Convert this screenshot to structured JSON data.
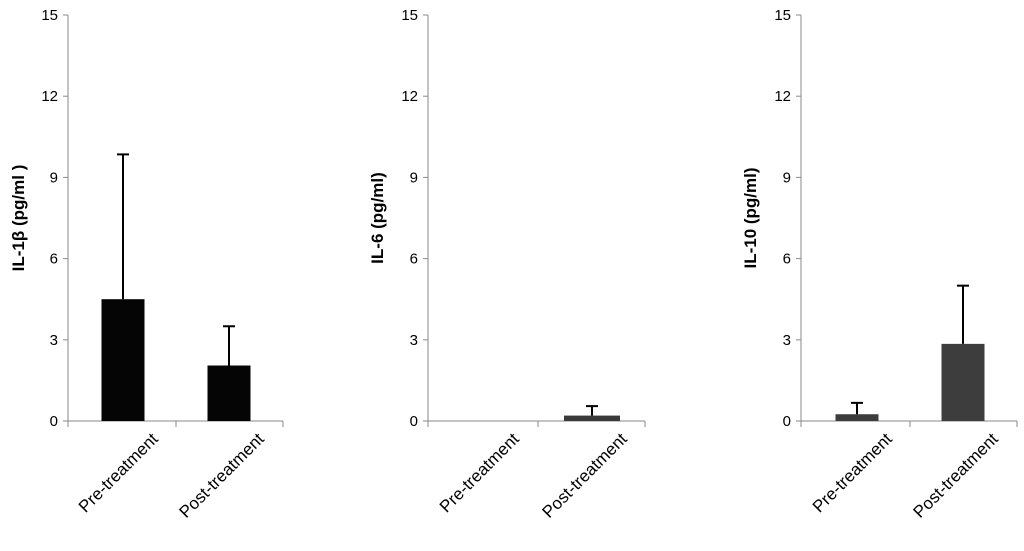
{
  "chart_data": [
    {
      "type": "bar",
      "categories": [
        "Pre-treatment",
        "Post-treatment"
      ],
      "values": [
        4.5,
        2.05
      ],
      "error_bars": [
        5.35,
        1.45
      ],
      "ylabel": "IL-1β (pg/ml )",
      "ylim": [
        0,
        15
      ],
      "yticks": [
        "0",
        "3",
        "6",
        "9",
        "12",
        "15"
      ],
      "bar_color": "#050505",
      "grid": false
    },
    {
      "type": "bar",
      "categories": [
        "Pre-treatment",
        "Post-treatment"
      ],
      "values": [
        0,
        0.2
      ],
      "error_bars": [
        0,
        0.35
      ],
      "ylabel": "IL-6 (pg/ml)",
      "ylim": [
        0,
        15
      ],
      "yticks": [
        "0",
        "3",
        "6",
        "9",
        "12",
        "15"
      ],
      "bar_color": "#3a3a3a",
      "grid": false
    },
    {
      "type": "bar",
      "categories": [
        "Pre-treatment",
        "Post-treatment"
      ],
      "values": [
        0.25,
        2.85
      ],
      "error_bars": [
        0.42,
        2.15
      ],
      "ylabel": "IL-10 (pg/ml)",
      "ylim": [
        0,
        15
      ],
      "yticks": [
        "0",
        "3",
        "6",
        "9",
        "12",
        "15"
      ],
      "bar_color": "#3d3d3d",
      "grid": false
    }
  ]
}
